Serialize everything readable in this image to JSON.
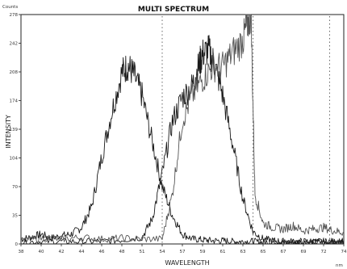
{
  "chart_data": {
    "type": "line",
    "title": "MULTI SPECTRUM",
    "xlabel": "WAVELENGTH",
    "ylabel": "INTENSITY",
    "corner_label": "Counts",
    "x_unit_label": "nm",
    "x_ticks": [
      "38",
      "40",
      "42",
      "44",
      "46",
      "48",
      "51",
      "54",
      "57",
      "59",
      "61",
      "63",
      "65",
      "67",
      "69",
      "72",
      "74"
    ],
    "y_ticks": [
      "0",
      "35",
      "70",
      "104",
      "139",
      "174",
      "208",
      "242",
      "278"
    ],
    "xlim": [
      0,
      16
    ],
    "ylim": [
      0,
      278
    ],
    "grid": false,
    "dotted_vertical_lines_x": [
      7.0,
      11.5,
      15.3
    ],
    "series": [
      {
        "color": "#1a1a1a",
        "points": [
          [
            0,
            6
          ],
          [
            0.5,
            8
          ],
          [
            1,
            12
          ],
          [
            1.5,
            7
          ],
          [
            2,
            10
          ],
          [
            2.5,
            12
          ],
          [
            3,
            20
          ],
          [
            3.5,
            45
          ],
          [
            4,
            105
          ],
          [
            4.5,
            160
          ],
          [
            5,
            208
          ],
          [
            5.3,
            216
          ],
          [
            5.6,
            205
          ],
          [
            6,
            180
          ],
          [
            6.5,
            125
          ],
          [
            7,
            70
          ],
          [
            7.5,
            35
          ],
          [
            8,
            12
          ],
          [
            8.5,
            6
          ],
          [
            9,
            5
          ],
          [
            9.5,
            4
          ],
          [
            10,
            4
          ],
          [
            10.5,
            3
          ],
          [
            11,
            3
          ],
          [
            11.5,
            3
          ],
          [
            12,
            2
          ],
          [
            12.5,
            2
          ],
          [
            13,
            2
          ],
          [
            13.5,
            2
          ],
          [
            14,
            2
          ],
          [
            14.5,
            2
          ],
          [
            15,
            2
          ],
          [
            15.5,
            2
          ],
          [
            16,
            2
          ]
        ]
      },
      {
        "color": "#1a1a1a",
        "points": [
          [
            0,
            2
          ],
          [
            1,
            3
          ],
          [
            2,
            3
          ],
          [
            3,
            3
          ],
          [
            4,
            3
          ],
          [
            5,
            5
          ],
          [
            6,
            8
          ],
          [
            6.5,
            30
          ],
          [
            7,
            85
          ],
          [
            7.5,
            148
          ],
          [
            8,
            178
          ],
          [
            8.5,
            192
          ],
          [
            8.8,
            215
          ],
          [
            9,
            230
          ],
          [
            9.3,
            235
          ],
          [
            9.6,
            218
          ],
          [
            10,
            180
          ],
          [
            10.5,
            120
          ],
          [
            11,
            55
          ],
          [
            11.5,
            15
          ],
          [
            12,
            6
          ],
          [
            12.5,
            4
          ],
          [
            13,
            3
          ],
          [
            13.5,
            3
          ],
          [
            14,
            3
          ],
          [
            14.5,
            3
          ],
          [
            15,
            3
          ],
          [
            15.5,
            3
          ],
          [
            16,
            3
          ]
        ]
      },
      {
        "color": "#555555",
        "points": [
          [
            0,
            4
          ],
          [
            1,
            7
          ],
          [
            2,
            6
          ],
          [
            3,
            8
          ],
          [
            4,
            6
          ],
          [
            5,
            7
          ],
          [
            6,
            6
          ],
          [
            7,
            6
          ],
          [
            7.5,
            60
          ],
          [
            8,
            150
          ],
          [
            8.5,
            180
          ],
          [
            9,
            200
          ],
          [
            9.5,
            215
          ],
          [
            10,
            215
          ],
          [
            10.5,
            232
          ],
          [
            11,
            247
          ],
          [
            11.2,
            265
          ],
          [
            11.4,
            278
          ],
          [
            11.6,
            60
          ],
          [
            12,
            25
          ],
          [
            12.5,
            20
          ],
          [
            13,
            18
          ],
          [
            13.5,
            22
          ],
          [
            14,
            16
          ],
          [
            14.5,
            18
          ],
          [
            15,
            20
          ],
          [
            15.5,
            16
          ],
          [
            16,
            14
          ]
        ]
      }
    ]
  }
}
